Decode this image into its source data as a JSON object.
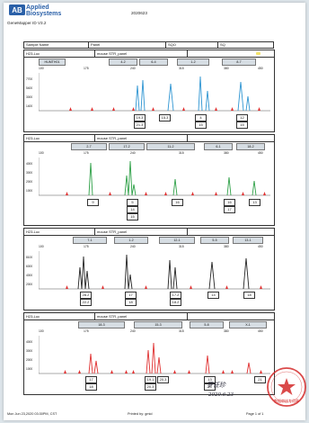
{
  "header": {
    "brand_line1": "Applied",
    "brand_line2": "Biosystems",
    "logo_mark": "AB",
    "software": "GeneMapper ID V3.2",
    "date": "2020623"
  },
  "table_header": {
    "col1": "Sample Name",
    "col2": "Panel",
    "col3": "SQO",
    "col4": "SQ"
  },
  "bp_ticks": [
    "100",
    "175",
    "240",
    "315",
    "380",
    "450"
  ],
  "panels": [
    {
      "sample": "H23-Luc",
      "kit": "mouse STR_panel",
      "markers": [
        "HUMTH01",
        "4-2",
        "6-4",
        "1-2",
        "8-7"
      ],
      "y_ticks": [
        "7700",
        "5400",
        "3000",
        "1400"
      ],
      "color": "#2e95d2",
      "alleles": [
        {
          "top": "19.3",
          "bottom": "21.3"
        },
        {
          "top": "15.3",
          "bottom": ""
        },
        {
          "top": "4",
          "bottom": "15"
        },
        {
          "top": "12",
          "bottom": "15"
        }
      ]
    },
    {
      "sample": "H23-Luc",
      "kit": "mouse STR_panel",
      "markers": [
        "2-7",
        "17-2",
        "11-2",
        "6-1",
        "18-2"
      ],
      "y_ticks": [
        "4000",
        "3000",
        "2000",
        "1000"
      ],
      "color": "#2ea047",
      "alleles": [
        {
          "top": "9",
          "bottom": ""
        },
        {
          "top": "5",
          "bottom": "14"
        },
        {
          "top": "16",
          "bottom": ""
        },
        {
          "top": "16",
          "bottom": "17"
        },
        {
          "top": "13",
          "bottom": ""
        }
      ],
      "extra_allele": "15"
    },
    {
      "sample": "H23-Luc",
      "kit": "mouse STR_panel",
      "markers": [
        "7-1",
        "1-2",
        "12-1",
        "5-5",
        "13-1"
      ],
      "y_ticks": [
        "8100",
        "6000",
        "4000",
        "2000"
      ],
      "color": "#222222",
      "alleles": [
        {
          "top": "28.2",
          "bottom": "22.2"
        },
        {
          "top": "17",
          "bottom": "18"
        },
        {
          "top": "17.2",
          "bottom": "18.2"
        },
        {
          "top": "14",
          "bottom": ""
        },
        {
          "top": "18",
          "bottom": ""
        }
      ]
    },
    {
      "sample": "H23-Luc",
      "kit": "mouse STR_panel",
      "markers": [
        "18-3",
        "15-3",
        "5-8",
        "X-1"
      ],
      "y_ticks": [
        "4000",
        "3000",
        "2000",
        "1000"
      ],
      "color": "#e03030",
      "alleles": [
        {
          "top": "17",
          "bottom": "18"
        },
        {
          "top": "19.1",
          "bottom": "20.3"
        },
        {
          "top": "20.3",
          "bottom": ""
        },
        {
          "top": "13",
          "bottom": "15"
        },
        {
          "top": "21",
          "bottom": ""
        }
      ]
    }
  ],
  "handwritten": {
    "signature": "罗任珍",
    "date": "2020.6.23"
  },
  "stamp_text": "数据审核专用章",
  "footer": {
    "printed_on": "Mon Jun 23,2020 03:30PM, CST",
    "printed_by": "Printed by: gmid",
    "page": "Page 1 of 1"
  }
}
